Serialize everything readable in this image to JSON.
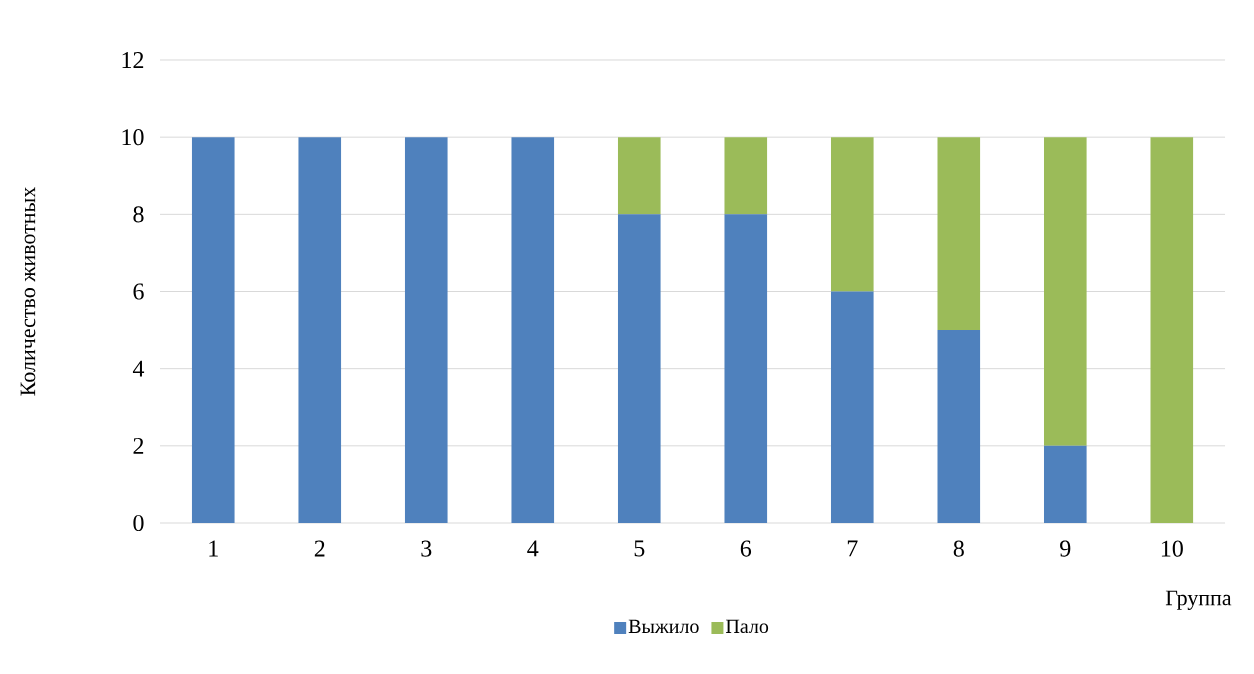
{
  "chart_data": {
    "type": "bar",
    "stacked": true,
    "xlabel": "Группа",
    "ylabel": "Количество животных",
    "categories": [
      "1",
      "2",
      "3",
      "4",
      "5",
      "6",
      "7",
      "8",
      "9",
      "10"
    ],
    "series": [
      {
        "name": "Выжило",
        "color": "#4f81bd",
        "values": [
          10,
          10,
          10,
          10,
          8,
          8,
          6,
          5,
          2,
          0
        ]
      },
      {
        "name": "Пало",
        "color": "#9bbb59",
        "values": [
          0,
          0,
          0,
          0,
          2,
          2,
          4,
          5,
          8,
          10
        ]
      }
    ],
    "ylim": [
      0,
      12
    ],
    "yticks": [
      0,
      2,
      4,
      6,
      8,
      10,
      12
    ],
    "grid": "y",
    "legend": "bottom"
  }
}
